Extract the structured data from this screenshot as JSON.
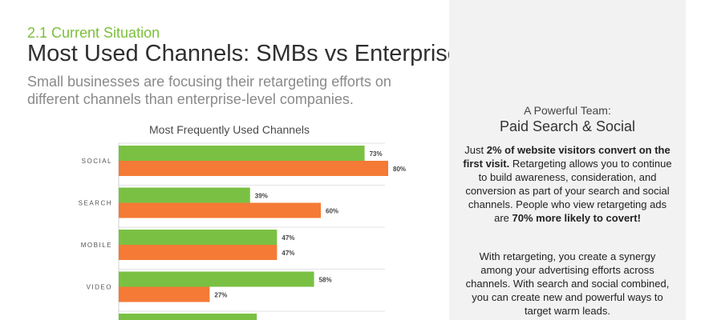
{
  "header": {
    "section": "2.1 Current Situation",
    "title": "Most Used Channels: SMBs vs Enterprises",
    "subtitle": "Small businesses are focusing their retargeting efforts on different channels than enterprise-level companies."
  },
  "chart_data": {
    "type": "bar",
    "orientation": "horizontal",
    "title": "Most Frequently Used Channels",
    "xlabel": "",
    "ylabel": "",
    "xlim": [
      0,
      100
    ],
    "grid": true,
    "categories": [
      "SOCIAL",
      "SEARCH",
      "MOBILE",
      "VIDEO"
    ],
    "series": [
      {
        "values": [
          73,
          39,
          47,
          58
        ],
        "labels": [
          "73%",
          "39%",
          "47%",
          "58%"
        ],
        "color": "#7ac143"
      },
      {
        "values": [
          80,
          60,
          47,
          27
        ],
        "labels": [
          "80%",
          "60%",
          "47%",
          "27%"
        ],
        "color": "#f47a35"
      }
    ],
    "partial_bar": {
      "series_index": 0,
      "value": 41
    }
  },
  "sidebar": {
    "kicker": "A Powerful Team:",
    "title": "Paid Search & Social",
    "p1": [
      {
        "t": "Just "
      },
      {
        "t": "2% of website visitors convert on the first visit.",
        "b": true
      },
      {
        "t": " Retargeting allows you to continue to build awareness, consideration, and conversion as part of your search and social channels. People who view retargeting ads are "
      },
      {
        "t": "70% more likely to covert!",
        "b": true
      }
    ],
    "p2": "With retargeting, you create a synergy among your advertising efforts across channels. With search and social combined, you can create new and powerful ways to target warm leads."
  },
  "colors": {
    "accent_green": "#7ac143",
    "accent_orange": "#f47a35",
    "panel": "#f2f2f2"
  }
}
